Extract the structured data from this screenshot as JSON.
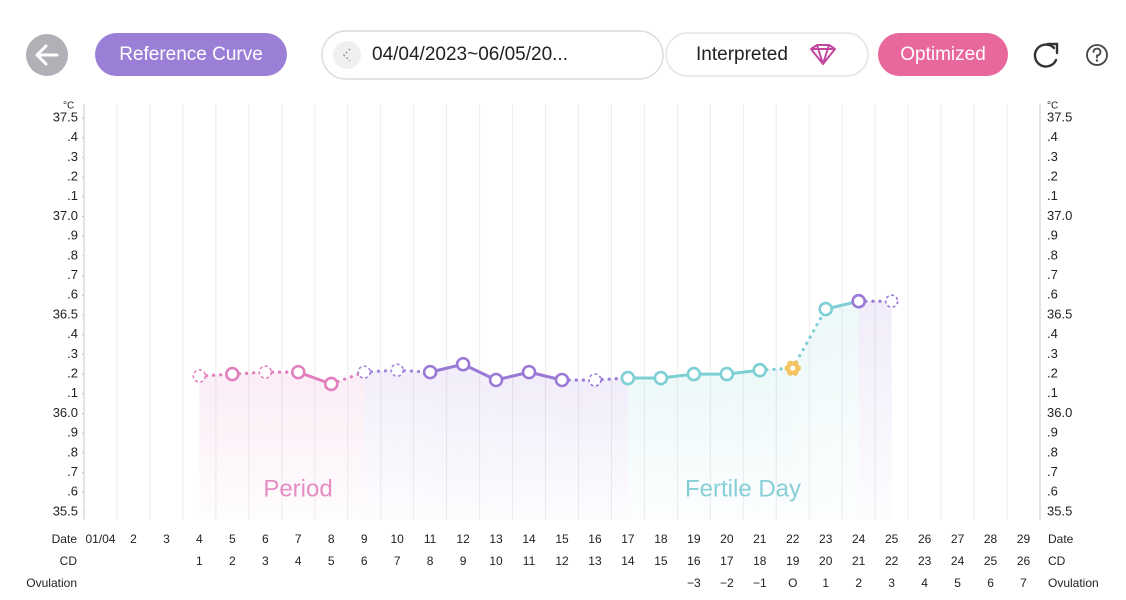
{
  "header": {
    "reference_button": "Reference Curve",
    "date_range": "04/04/2023~06/05/20...",
    "interpreted": "Interpreted",
    "optimized": "Optimized"
  },
  "chart_data": {
    "type": "line",
    "unit": "°C",
    "row_labels": {
      "date": "Date",
      "cd": "CD",
      "ovulation": "Ovulation"
    },
    "categories": [
      "01/04",
      "2",
      "3",
      "4",
      "5",
      "6",
      "7",
      "8",
      "9",
      "10",
      "11",
      "12",
      "13",
      "14",
      "15",
      "16",
      "17",
      "18",
      "19",
      "20",
      "21",
      "22",
      "23",
      "24",
      "25",
      "26",
      "27",
      "28",
      "29"
    ],
    "cd": [
      null,
      null,
      null,
      "1",
      "2",
      "3",
      "4",
      "5",
      "6",
      "7",
      "8",
      "9",
      "10",
      "11",
      "12",
      "13",
      "14",
      "15",
      "16",
      "17",
      "18",
      "19",
      "20",
      "21",
      "22",
      "23",
      "24",
      "25",
      "26"
    ],
    "ovulation_days": [
      null,
      null,
      null,
      null,
      null,
      null,
      null,
      null,
      null,
      null,
      null,
      null,
      null,
      null,
      null,
      null,
      null,
      null,
      "−3",
      "−2",
      "−1",
      "O",
      "1",
      "2",
      "3",
      "4",
      "5",
      "6",
      "7"
    ],
    "series": [
      {
        "values": [
          null,
          null,
          null,
          36.19,
          36.2,
          36.21,
          36.21,
          36.15,
          36.21,
          36.22,
          36.21,
          36.25,
          36.17,
          36.21,
          36.17,
          36.17,
          36.18,
          36.18,
          36.2,
          36.2,
          36.22,
          36.23,
          36.53,
          36.57,
          36.57,
          null,
          null,
          null,
          null
        ],
        "point_colors": [
          null,
          null,
          null,
          "#e27fbd",
          "#e27fbd",
          "#e27fbd",
          "#e27fbd",
          "#e27fbd",
          "#a585dc",
          "#a585dc",
          "#9a78d6",
          "#9a78d6",
          "#9a78d6",
          "#9a78d6",
          "#9a78d6",
          "#9a78d6",
          "#7ccfd3",
          "#7ccfd3",
          "#7ccfd3",
          "#7ccfd3",
          "#7ccfd3",
          "#f5c463",
          "#7ccfd3",
          "#9a78d6",
          "#9a78d6",
          null,
          null,
          null,
          null
        ],
        "point_styles": [
          null,
          null,
          null,
          "dashed",
          "solid",
          "dashed",
          "solid",
          "solid",
          "dashed",
          "dashed",
          "solid",
          "solid",
          "solid",
          "solid",
          "solid",
          "dashed",
          "solid",
          "solid",
          "solid",
          "solid",
          "solid",
          "ovulation",
          "solid",
          "solid",
          "dashed",
          null,
          null,
          null,
          null
        ]
      }
    ],
    "ylim": [
      35.5,
      37.5
    ],
    "yticks": [
      35.5,
      {
        "value": 35.6,
        "label": ".6"
      },
      {
        "value": 35.7,
        "label": ".7"
      },
      {
        "value": 35.8,
        "label": ".8"
      },
      {
        "value": 35.9,
        "label": ".9"
      },
      {
        "value": 36.0,
        "label": "36.0"
      },
      {
        "value": 36.1,
        "label": ".1"
      },
      {
        "value": 36.2,
        "label": ".2"
      },
      {
        "value": 36.3,
        "label": ".3"
      },
      {
        "value": 36.4,
        "label": ".4"
      },
      36.5,
      {
        "value": 36.6,
        "label": ".6"
      },
      {
        "value": 36.7,
        "label": ".7"
      },
      {
        "value": 36.8,
        "label": ".8"
      },
      {
        "value": 36.9,
        "label": ".9"
      },
      {
        "value": 37.0,
        "label": "37.0"
      },
      {
        "value": 37.1,
        "label": ".1"
      },
      {
        "value": 37.2,
        "label": ".2"
      },
      {
        "value": 37.3,
        "label": ".3"
      },
      {
        "value": 37.4,
        "label": ".4"
      },
      37.5
    ],
    "annotations": [
      {
        "text": "Period",
        "color": "#e58cc3"
      },
      {
        "text": "Fertile Day",
        "color": "#86cfd6"
      }
    ],
    "grid": true
  }
}
